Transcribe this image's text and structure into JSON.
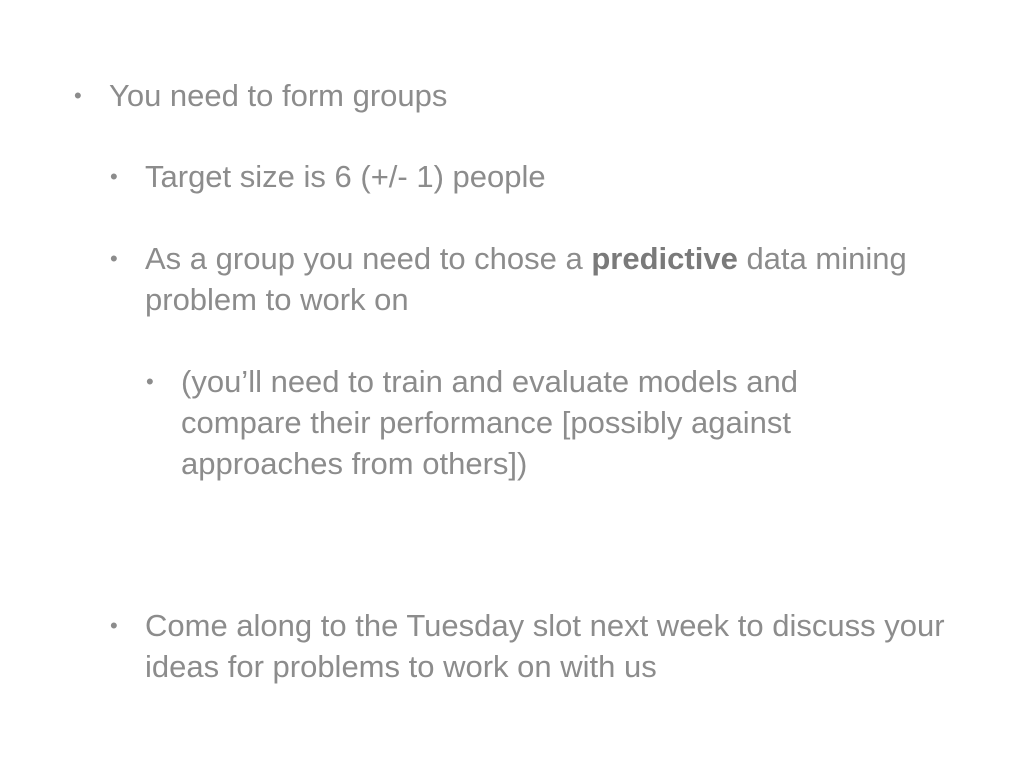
{
  "bullets": {
    "b1": {
      "text": "You need to form groups"
    },
    "b2": {
      "text": "Target size is 6 (+/- 1) people"
    },
    "b3": {
      "before": "As a group you need to chose a ",
      "bold": "predictive",
      "after": " data mining problem to work on"
    },
    "b4": {
      "text": "(you’ll need to train and evaluate models and compare their performance [possibly against approaches from others])"
    },
    "b5": {
      "text": "Come along to the Tuesday slot next week to discuss your ideas for problems to work on with us"
    }
  },
  "bullet_glyph": "•"
}
